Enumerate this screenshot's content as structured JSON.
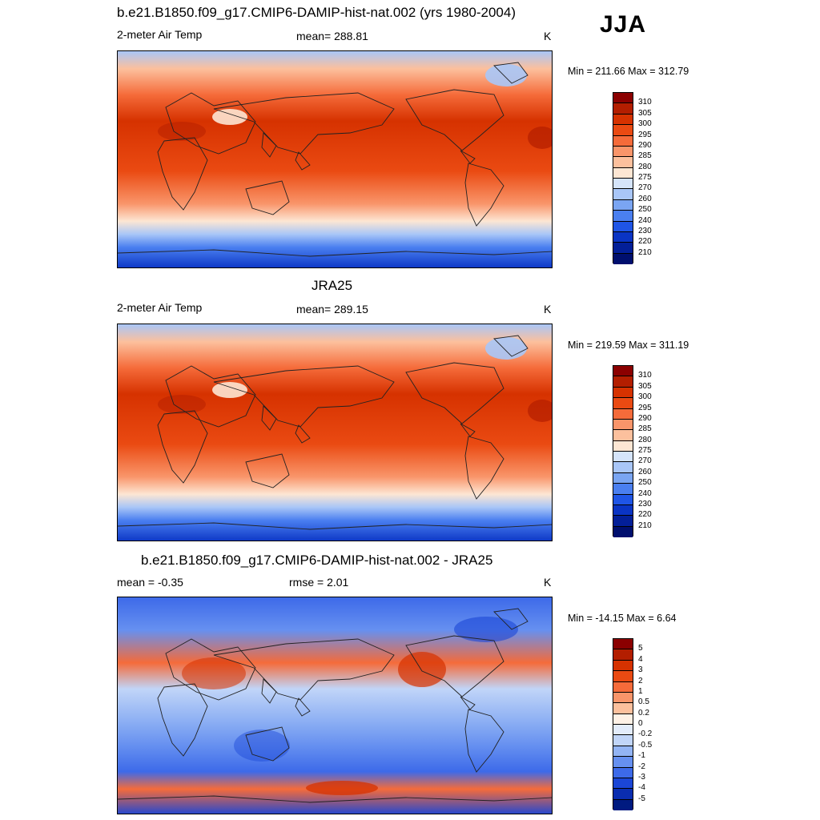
{
  "season": "JJA",
  "panels": [
    {
      "title": "b.e21.B1850.f09_g17.CMIP6-DAMIP-hist-nat.002 (yrs 1980-2004)",
      "variable": "2-meter Air Temp",
      "stat": "mean= 288.81",
      "units": "K",
      "minmax": "Min = 211.66 Max = 312.79",
      "map_type": "temperature",
      "colorbar_labels": [
        "310",
        "305",
        "300",
        "295",
        "290",
        "285",
        "280",
        "275",
        "270",
        "260",
        "250",
        "240",
        "230",
        "220",
        "210"
      ]
    },
    {
      "title": "JRA25",
      "variable": "2-meter Air Temp",
      "stat": "mean= 289.15",
      "units": "K",
      "minmax": "Min = 219.59 Max = 311.19",
      "map_type": "temperature",
      "colorbar_labels": [
        "310",
        "305",
        "300",
        "295",
        "290",
        "285",
        "280",
        "275",
        "270",
        "260",
        "250",
        "240",
        "230",
        "220",
        "210"
      ]
    },
    {
      "title": "b.e21.B1850.f09_g17.CMIP6-DAMIP-hist-nat.002 - JRA25",
      "variable": "mean =  -0.35",
      "stat": "rmse =   2.01",
      "units": "K",
      "minmax": "Min = -14.15 Max =   6.64",
      "map_type": "difference",
      "colorbar_labels": [
        "5",
        "4",
        "3",
        "2",
        "1",
        "0.5",
        "0.2",
        "0",
        "-0.2",
        "-0.5",
        "-1",
        "-2",
        "-3",
        "-4",
        "-5"
      ]
    }
  ],
  "colors": {
    "temperature_levels": [
      "#8b0000",
      "#b31e00",
      "#d63200",
      "#ea4a12",
      "#f56b3a",
      "#f9956a",
      "#fcc09d",
      "#fde6d3",
      "#d5e4fa",
      "#a9c6f7",
      "#7aa5f2",
      "#4a7ff0",
      "#1f55e6",
      "#0a34c4",
      "#031f98",
      "#000f6e"
    ],
    "difference_levels": [
      "#8b0000",
      "#b31e00",
      "#d63200",
      "#ea4a12",
      "#f56b3a",
      "#f9956a",
      "#fcc09d",
      "#fef1e6",
      "#e3ecfb",
      "#c1d5f8",
      "#93b4f4",
      "#6690f0",
      "#3d6ae9",
      "#1b46d6",
      "#0a2db0",
      "#001a80"
    ]
  }
}
